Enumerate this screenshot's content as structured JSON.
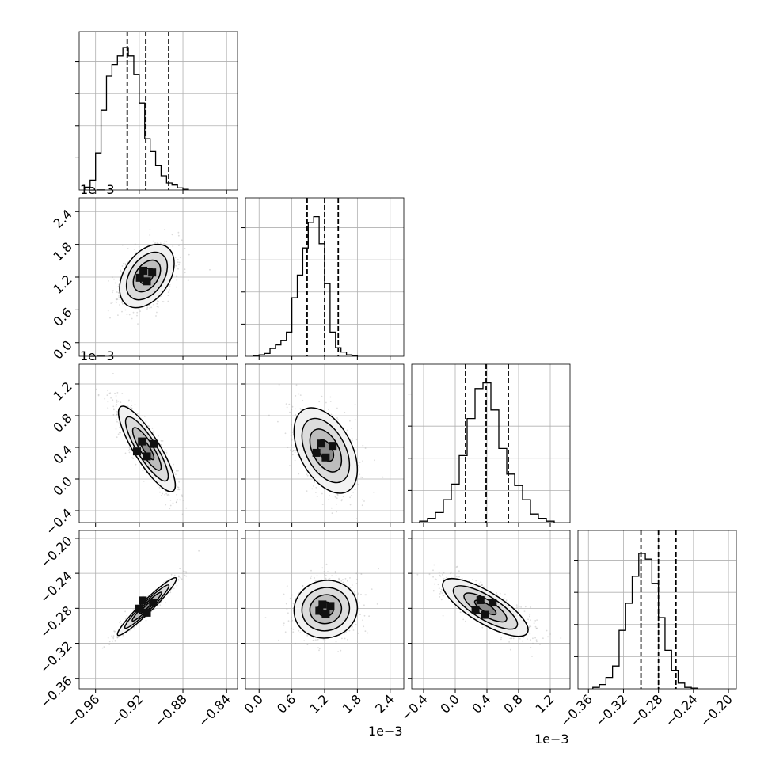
{
  "chart_data": {
    "type": "corner",
    "parameters": 4,
    "grid": true,
    "quantiles": [
      0.16,
      0.5,
      0.84
    ],
    "axis_offsets": {
      "p1_y": "1e−3",
      "p2_y": "1e−3",
      "p1_x": "1e−3",
      "p2_x": "1e−3"
    },
    "axes": {
      "p0": {
        "range": [
          -0.975,
          -0.83
        ],
        "ticks": [
          -0.96,
          -0.92,
          -0.88,
          -0.84
        ],
        "tick_labels": [
          "−0.96",
          "−0.92",
          "−0.88",
          "−0.84"
        ]
      },
      "p1": {
        "range": [
          -0.25,
          2.65
        ],
        "ticks": [
          0.0,
          0.6,
          1.2,
          1.8,
          2.4
        ],
        "tick_labels": [
          "0.0",
          "0.6",
          "1.2",
          "1.8",
          "2.4"
        ]
      },
      "p2": {
        "range": [
          -0.55,
          1.45
        ],
        "ticks": [
          -0.4,
          0.0,
          0.4,
          0.8,
          1.2
        ],
        "tick_labels": [
          "−0.4",
          "0.0",
          "0.4",
          "0.8",
          "1.2"
        ]
      },
      "p3": {
        "range": [
          -0.372,
          -0.191
        ],
        "ticks": [
          -0.36,
          -0.32,
          -0.28,
          -0.24,
          -0.2
        ],
        "tick_labels": [
          "−0.36",
          "−0.32",
          "−0.28",
          "−0.24",
          "−0.20"
        ]
      }
    },
    "marginals": [
      {
        "param": "p0",
        "bin_edges_start": -0.97,
        "bin_width": 0.005,
        "counts": [
          0.02,
          0.07,
          0.26,
          0.56,
          0.8,
          0.88,
          0.94,
          1.0,
          0.94,
          0.81,
          0.61,
          0.36,
          0.27,
          0.17,
          0.1,
          0.05,
          0.035,
          0.015,
          0.005
        ],
        "quantile_values": [
          -0.931,
          -0.914,
          -0.893
        ]
      },
      {
        "param": "p1",
        "bin_edges_start": -0.1,
        "bin_width": 0.1,
        "counts": [
          0.005,
          0.01,
          0.02,
          0.055,
          0.08,
          0.11,
          0.17,
          0.41,
          0.57,
          0.76,
          0.94,
          0.98,
          0.79,
          0.51,
          0.17,
          0.06,
          0.03,
          0.01,
          0.005
        ],
        "quantile_values": [
          0.88,
          1.2,
          1.45
        ]
      },
      {
        "param": "p2",
        "bin_edges_start": -0.45,
        "bin_width": 0.1,
        "counts": [
          0.01,
          0.03,
          0.07,
          0.16,
          0.27,
          0.47,
          0.73,
          0.94,
          0.98,
          0.79,
          0.52,
          0.34,
          0.26,
          0.16,
          0.06,
          0.03,
          0.01
        ],
        "quantile_values": [
          0.13,
          0.39,
          0.67
        ]
      },
      {
        "param": "p3",
        "bin_edges_start": -0.355,
        "bin_width": 0.0075,
        "counts": [
          0.01,
          0.03,
          0.08,
          0.16,
          0.41,
          0.6,
          0.79,
          0.95,
          0.91,
          0.74,
          0.5,
          0.27,
          0.13,
          0.04,
          0.01,
          0.005
        ],
        "quantile_values": [
          -0.3,
          -0.28,
          -0.26
        ]
      }
    ],
    "pairs": [
      {
        "x": "p0",
        "y": "p1",
        "center": [
          -0.913,
          1.22
        ],
        "sd": [
          0.0125,
          0.29
        ],
        "corr": 0.4,
        "seed": 11
      },
      {
        "x": "p0",
        "y": "p2",
        "center": [
          -0.913,
          0.38
        ],
        "sd": [
          0.013,
          0.27
        ],
        "corr": -0.85,
        "seed": 22
      },
      {
        "x": "p1",
        "y": "p2",
        "center": [
          1.22,
          0.36
        ],
        "sd": [
          0.29,
          0.27
        ],
        "corr": -0.45,
        "seed": 33
      },
      {
        "x": "p0",
        "y": "p3",
        "center": [
          -0.913,
          -0.278
        ],
        "sd": [
          0.0135,
          0.0165
        ],
        "corr": 0.96,
        "seed": 44
      },
      {
        "x": "p1",
        "y": "p3",
        "center": [
          1.22,
          -0.281
        ],
        "sd": [
          0.29,
          0.0165
        ],
        "corr": 0.05,
        "seed": 55
      },
      {
        "x": "p2",
        "y": "p3",
        "center": [
          0.38,
          -0.279
        ],
        "sd": [
          0.27,
          0.0165
        ],
        "corr": -0.78,
        "seed": 66
      }
    ]
  }
}
